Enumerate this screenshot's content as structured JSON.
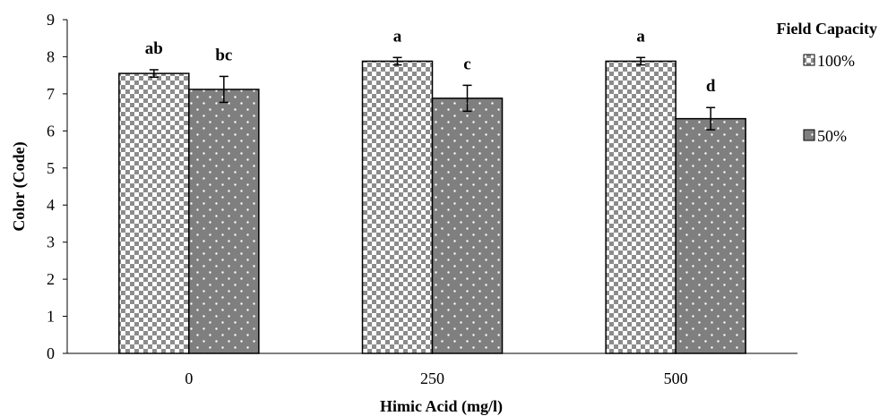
{
  "chart_data": {
    "type": "bar",
    "categories": [
      "0",
      "250",
      "500"
    ],
    "xlabel": "Himic Acid (mg/l)",
    "ylabel": "Color (Code)",
    "ylim": [
      0,
      9
    ],
    "yticks": [
      0,
      1,
      2,
      3,
      4,
      5,
      6,
      7,
      8,
      9
    ],
    "grid": false,
    "legend": {
      "title": "Field Capacity",
      "placement": "right"
    },
    "series": [
      {
        "name": "100%",
        "pattern": "checkerboard",
        "values": [
          7.55,
          7.88,
          7.88
        ],
        "errors": [
          0.1,
          0.1,
          0.1
        ],
        "significance": [
          "ab",
          "a",
          "a"
        ]
      },
      {
        "name": "50%",
        "pattern": "dotted-gray",
        "values": [
          7.12,
          6.88,
          6.33
        ],
        "errors": [
          0.35,
          0.35,
          0.3
        ],
        "significance": [
          "bc",
          "c",
          "d"
        ]
      }
    ],
    "colors": {
      "axis": "#000000",
      "checker_dark": "#8c8c8c",
      "checker_light": "#ffffff",
      "dots_bg": "#7f7f7f",
      "dots_fg": "#ffffff"
    }
  }
}
